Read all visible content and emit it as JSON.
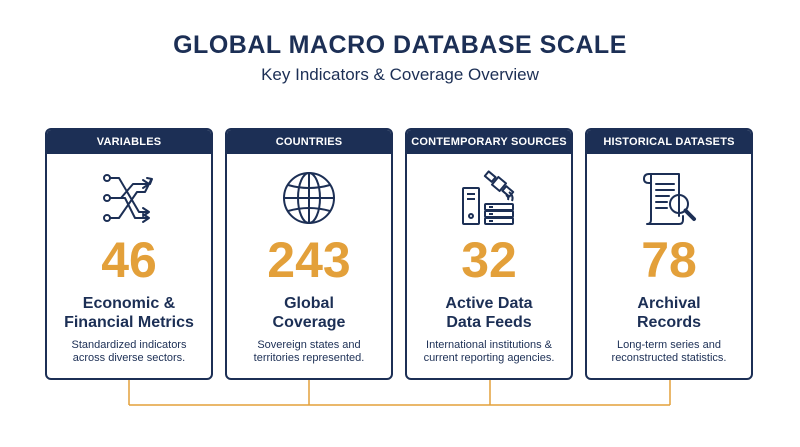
{
  "header": {
    "title": "GLOBAL MACRO DATABASE SCALE",
    "subtitle": "Key Indicators & Coverage Overview"
  },
  "colors": {
    "navy": "#1c2f55",
    "accent": "#e3a03a"
  },
  "cards": [
    {
      "header": "VARIABLES",
      "icon": "branching-arrows-icon",
      "number": "46",
      "label_line1": "Economic &",
      "label_line2": "Financial Metrics",
      "desc_line1": "Standardized indicators",
      "desc_line2": "across diverse sectors."
    },
    {
      "header": "COUNTRIES",
      "icon": "globe-icon",
      "number": "243",
      "label_line1": "Global",
      "label_line2": "Coverage",
      "desc_line1": "Sovereign states and",
      "desc_line2": "territories represented."
    },
    {
      "header": "CONTEMPORARY SOURCES",
      "icon": "satellite-server-icon",
      "number": "32",
      "label_line1": "Active Data",
      "label_line2": "Data Feeds",
      "desc_line1": "International institutions &",
      "desc_line2": "current reporting agencies."
    },
    {
      "header": "HISTORICAL DATASETS",
      "icon": "scroll-magnifier-icon",
      "number": "78",
      "label_line1": "Archival",
      "label_line2": "Records",
      "desc_line1": "Long-term series and",
      "desc_line2": "reconstructed statistics."
    }
  ]
}
